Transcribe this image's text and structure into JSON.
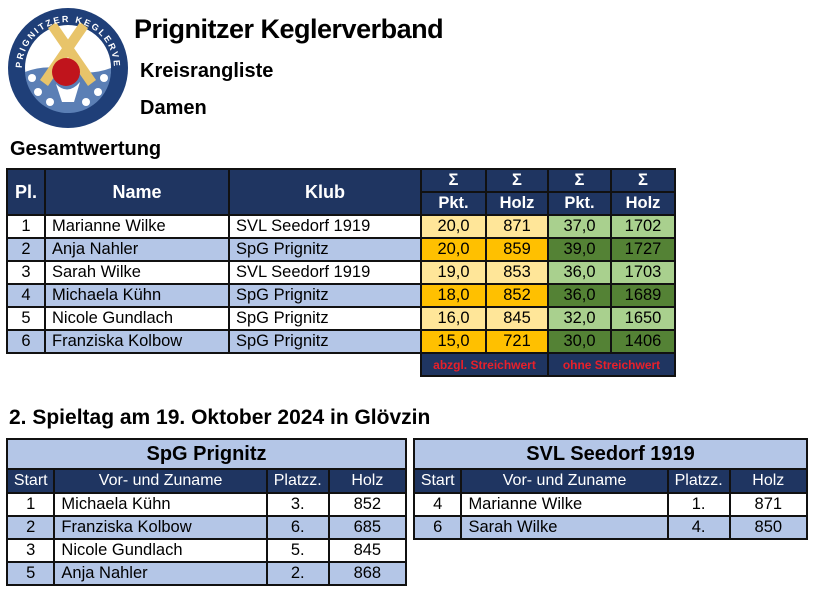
{
  "logo": {
    "text": "PRIGNITZER KEGLERVERBAND"
  },
  "header": {
    "title": "Prignitzer Keglerverband",
    "subtitle": "Kreisrangliste",
    "category": "Damen"
  },
  "overall": {
    "heading": "Gesamtwertung",
    "columns": {
      "pl": "Pl.",
      "name": "Name",
      "klub": "Klub",
      "sigma": "Σ",
      "pkt": "Pkt.",
      "holz": "Holz"
    },
    "rows": [
      {
        "pl": "1",
        "name": "Marianne Wilke",
        "klub": "SVL Seedorf 1919",
        "pkt1": "20,0",
        "holz1": "871",
        "pkt2": "37,0",
        "holz2": "1702"
      },
      {
        "pl": "2",
        "name": "Anja Nahler",
        "klub": "SpG Prignitz",
        "pkt1": "20,0",
        "holz1": "859",
        "pkt2": "39,0",
        "holz2": "1727"
      },
      {
        "pl": "3",
        "name": "Sarah Wilke",
        "klub": "SVL Seedorf 1919",
        "pkt1": "19,0",
        "holz1": "853",
        "pkt2": "36,0",
        "holz2": "1703"
      },
      {
        "pl": "4",
        "name": "Michaela Kühn",
        "klub": "SpG Prignitz",
        "pkt1": "18,0",
        "holz1": "852",
        "pkt2": "36,0",
        "holz2": "1689"
      },
      {
        "pl": "5",
        "name": "Nicole Gundlach",
        "klub": "SpG Prignitz",
        "pkt1": "16,0",
        "holz1": "845",
        "pkt2": "32,0",
        "holz2": "1650"
      },
      {
        "pl": "6",
        "name": "Franziska Kolbow",
        "klub": "SpG Prignitz",
        "pkt1": "15,0",
        "holz1": "721",
        "pkt2": "30,0",
        "holz2": "1406"
      }
    ],
    "footer": {
      "left": "abzgl. Streichwert",
      "right": "ohne Streichwert"
    }
  },
  "matchday": {
    "heading": "2. Spieltag am 19. Oktober 2024 in Glövzin",
    "columns": {
      "start": "Start",
      "name": "Vor- und Zuname",
      "platz": "Platzz.",
      "holz": "Holz"
    },
    "teams": [
      {
        "name": "SpG Prignitz",
        "rows": [
          {
            "start": "1",
            "name": "Michaela Kühn",
            "platz": "3.",
            "holz": "852"
          },
          {
            "start": "2",
            "name": "Franziska Kolbow",
            "platz": "6.",
            "holz": "685"
          },
          {
            "start": "3",
            "name": "Nicole Gundlach",
            "platz": "5.",
            "holz": "845"
          },
          {
            "start": "5",
            "name": "Anja Nahler",
            "platz": "2.",
            "holz": "868"
          }
        ]
      },
      {
        "name": "SVL Seedorf 1919",
        "rows": [
          {
            "start": "4",
            "name": "Marianne Wilke",
            "platz": "1.",
            "holz": "871"
          },
          {
            "start": "6",
            "name": "Sarah Wilke",
            "platz": "4.",
            "holz": "850"
          }
        ]
      }
    ]
  },
  "colors": {
    "header": "#1f3561",
    "band": "#b4c6e7",
    "yellow_light": "#ffe699",
    "yellow": "#ffc000",
    "green_light": "#a9d08e",
    "green": "#548235",
    "footer_text": "#e8202a"
  }
}
